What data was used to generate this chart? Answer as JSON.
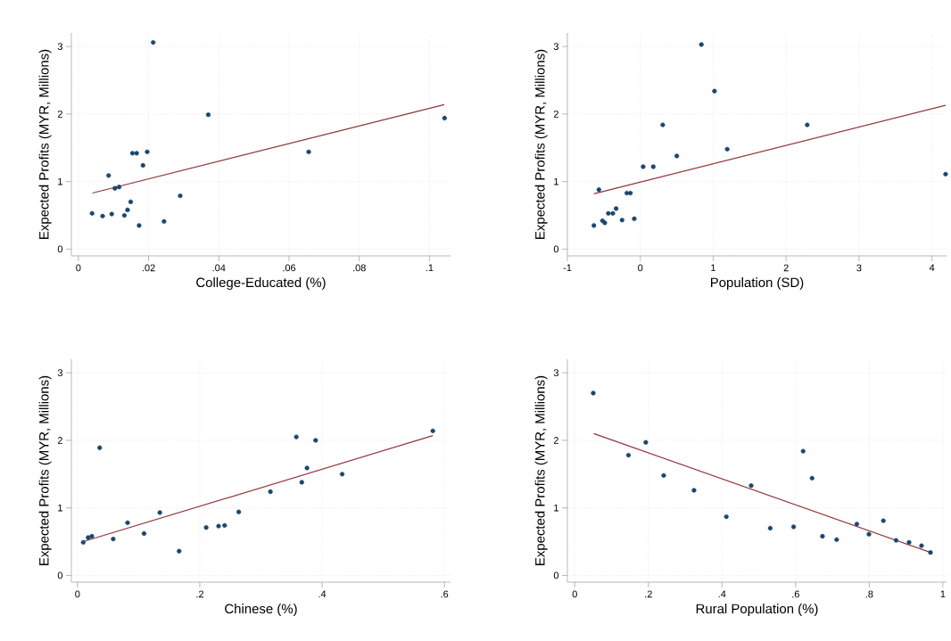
{
  "chart_data": [
    {
      "type": "scatter",
      "xlabel": "College-Educated (%)",
      "ylabel": "Expected Profits (MYR, Millions)",
      "xlim": [
        -0.002,
        0.106
      ],
      "ylim": [
        -0.1,
        3.2
      ],
      "xticks": [
        0,
        {
          "value": 0.02,
          "label": ".02"
        },
        {
          "value": 0.04,
          "label": ".04"
        },
        {
          "value": 0.06,
          "label": ".06"
        },
        {
          "value": 0.08,
          "label": ".08"
        },
        {
          "value": 0.1,
          "label": ".1"
        }
      ],
      "yticks": [
        0,
        1,
        2,
        3
      ],
      "grid": true,
      "series": [
        {
          "type": "scatter",
          "marker": "circle",
          "color": "#1a476f",
          "x": [
            0.0213,
            0.037,
            0.0656,
            0.1043,
            0.0154,
            0.0166,
            0.0196,
            0.0184,
            0.0086,
            0.0104,
            0.0116,
            0.0149,
            0.014,
            0.0131,
            0.0039,
            0.0069,
            0.0095,
            0.0173,
            0.0244,
            0.029
          ],
          "values": [
            3.06,
            1.99,
            1.44,
            1.94,
            1.42,
            1.42,
            1.44,
            1.24,
            1.09,
            0.9,
            0.92,
            0.7,
            0.58,
            0.5,
            0.53,
            0.49,
            0.52,
            0.35,
            0.41,
            0.79
          ]
        },
        {
          "type": "line",
          "marker": "none",
          "color": "#90353b",
          "x": [
            0.004,
            0.1042
          ],
          "values": [
            0.83,
            2.14
          ]
        }
      ]
    },
    {
      "type": "scatter",
      "xlabel": "Population (SD)",
      "ylabel": "Expected Profits (MYR, Millions)",
      "xlim": [
        -1,
        4.2
      ],
      "ylim": [
        -0.1,
        3.2
      ],
      "xticks": [
        -1,
        0,
        1,
        2,
        3,
        4
      ],
      "yticks": [
        0,
        1,
        2,
        3
      ],
      "grid": true,
      "series": [
        {
          "type": "scatter",
          "marker": "circle",
          "color": "#1a476f",
          "x": [
            0.838,
            1.017,
            0.308,
            2.289,
            1.192,
            0.5,
            0.039,
            0.178,
            4.187,
            -0.568,
            -0.185,
            -0.136,
            -0.332,
            -0.377,
            -0.438,
            -0.25,
            -0.083,
            -0.519,
            -0.487,
            -0.637
          ],
          "values": [
            3.03,
            2.34,
            1.84,
            1.84,
            1.48,
            1.38,
            1.22,
            1.22,
            1.11,
            0.88,
            0.83,
            0.83,
            0.6,
            0.53,
            0.53,
            0.43,
            0.45,
            0.42,
            0.39,
            0.35
          ]
        },
        {
          "type": "line",
          "marker": "none",
          "color": "#90353b",
          "x": [
            -0.637,
            4.187
          ],
          "values": [
            0.82,
            2.13
          ]
        }
      ]
    },
    {
      "type": "scatter",
      "xlabel": "Chinese (%)",
      "ylabel": "Expected Profits (MYR, Millions)",
      "xlim": [
        -0.01,
        0.61
      ],
      "ylim": [
        -0.1,
        3.2
      ],
      "xticks": [
        0,
        {
          "value": 0.2,
          "label": ".2"
        },
        {
          "value": 0.4,
          "label": ".4"
        },
        {
          "value": 0.6,
          "label": ".6"
        }
      ],
      "yticks": [
        0,
        1,
        2,
        3
      ],
      "grid": true,
      "series": [
        {
          "type": "scatter",
          "marker": "circle",
          "color": "#1a476f",
          "x": [
            0.0094,
            0.0174,
            0.0235,
            0.0363,
            0.0584,
            0.0819,
            0.1088,
            0.1347,
            0.1662,
            0.2105,
            0.2307,
            0.2406,
            0.2637,
            0.3155,
            0.3579,
            0.3668,
            0.3753,
            0.3894,
            0.4328,
            0.5811
          ],
          "values": [
            0.49,
            0.56,
            0.58,
            1.89,
            0.54,
            0.78,
            0.62,
            0.93,
            0.36,
            0.71,
            0.73,
            0.74,
            0.94,
            1.24,
            2.05,
            1.38,
            1.59,
            2.0,
            1.5,
            2.14
          ]
        },
        {
          "type": "line",
          "marker": "none",
          "color": "#90353b",
          "x": [
            0.0094,
            0.5811
          ],
          "values": [
            0.5,
            2.07
          ]
        }
      ]
    },
    {
      "type": "scatter",
      "xlabel": "Rural Population (%)",
      "ylabel": "Expected Profits (MYR, Millions)",
      "xlim": [
        -0.02,
        1.01
      ],
      "ylim": [
        -0.1,
        3.2
      ],
      "xticks": [
        0,
        {
          "value": 0.2,
          "label": ".2"
        },
        {
          "value": 0.4,
          "label": ".4"
        },
        {
          "value": 0.6,
          "label": ".6"
        },
        {
          "value": 0.8,
          "label": ".8"
        },
        1
      ],
      "yticks": [
        0,
        1,
        2,
        3
      ],
      "grid": true,
      "series": [
        {
          "type": "scatter",
          "marker": "circle",
          "color": "#1a476f",
          "x": [
            0.0502,
            0.1459,
            0.1929,
            0.2416,
            0.3239,
            0.4118,
            0.4792,
            0.531,
            0.5945,
            0.6204,
            0.6447,
            0.6729,
            0.7114,
            0.7663,
            0.7992,
            0.8384,
            0.8729,
            0.9082,
            0.942,
            0.9663
          ],
          "values": [
            2.7,
            1.78,
            1.97,
            1.48,
            1.26,
            0.87,
            1.33,
            0.7,
            0.72,
            1.84,
            1.44,
            0.58,
            0.53,
            0.76,
            0.61,
            0.81,
            0.52,
            0.49,
            0.44,
            0.34
          ]
        },
        {
          "type": "line",
          "marker": "none",
          "color": "#90353b",
          "x": [
            0.0518,
            0.9663
          ],
          "values": [
            2.1,
            0.34
          ]
        }
      ]
    }
  ]
}
